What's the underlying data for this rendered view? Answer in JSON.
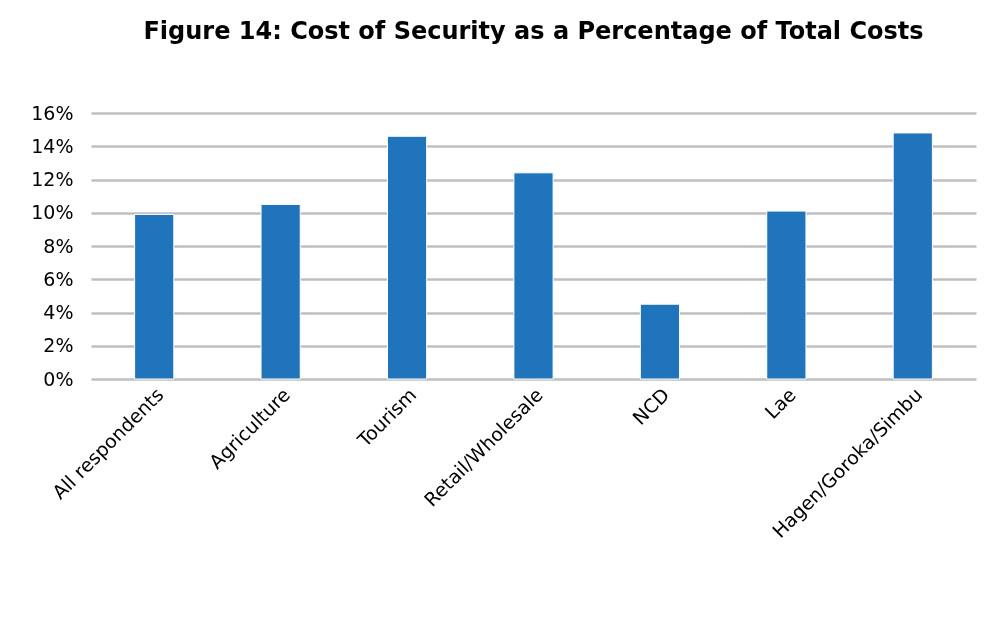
{
  "chart_data": {
    "type": "bar",
    "title": "Figure 14: Cost of Security as a Percentage of Total Costs",
    "categories": [
      "All respondents",
      "Agriculture",
      "Tourism",
      "Retail/Wholesale",
      "NCD",
      "Lae",
      "Hagen/Goroka/Simbu"
    ],
    "values": [
      9.9,
      10.5,
      14.6,
      12.4,
      4.5,
      10.1,
      14.8
    ],
    "color": "#1f74bb",
    "ylim": [
      0,
      16
    ],
    "yticks": [
      {
        "value": 0,
        "label": "0%"
      },
      {
        "value": 2,
        "label": "2%"
      },
      {
        "value": 4,
        "label": "4%"
      },
      {
        "value": 6,
        "label": "6%"
      },
      {
        "value": 8,
        "label": "8%"
      },
      {
        "value": 10,
        "label": "10%"
      },
      {
        "value": 12,
        "label": "12%"
      },
      {
        "value": 14,
        "label": "14%"
      },
      {
        "value": 16,
        "label": "16%"
      }
    ],
    "grid": "y"
  }
}
